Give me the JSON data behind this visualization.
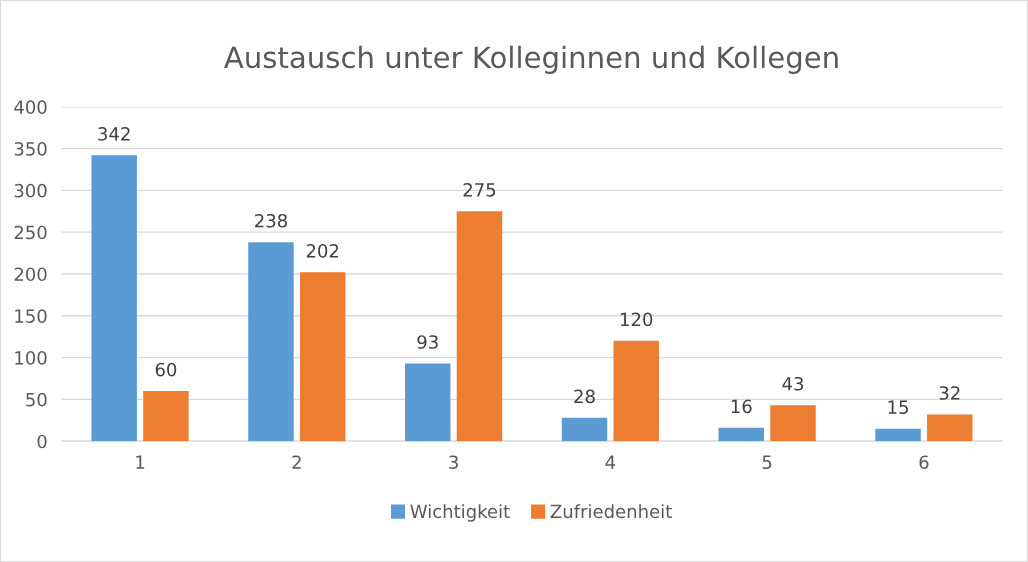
{
  "chart_data": {
    "type": "bar",
    "title": "Austausch unter Kolleginnen und Kollegen",
    "categories": [
      "1",
      "2",
      "3",
      "4",
      "5",
      "6"
    ],
    "series": [
      {
        "name": "Wichtigkeit",
        "color": "#5b9bd5",
        "values": [
          342,
          238,
          93,
          28,
          16,
          15
        ]
      },
      {
        "name": "Zufriedenheit",
        "color": "#ed7d31",
        "values": [
          60,
          202,
          275,
          120,
          43,
          32
        ]
      }
    ],
    "ylim": [
      0,
      400
    ],
    "yticks": [
      0,
      50,
      100,
      150,
      200,
      250,
      300,
      350,
      400
    ],
    "grid": "y",
    "legend": "bottom",
    "data_labels": true
  }
}
